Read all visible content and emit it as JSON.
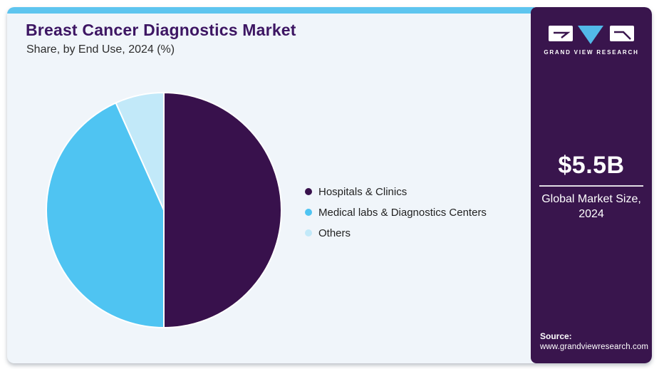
{
  "header": {
    "title": "Breast Cancer Diagnostics Market",
    "subtitle": "Share, by End Use, 2024 (%)"
  },
  "chart_data": {
    "type": "pie",
    "title": "Breast Cancer Diagnostics Market Share, by End Use, 2024 (%)",
    "labels": [
      "Hospitals & Clinics",
      "Medical labs & Diagnostics Centers",
      "Others"
    ],
    "values": [
      50.0,
      43.3,
      6.7
    ],
    "colors": [
      "#38114c",
      "#4fc4f2",
      "#c2e9f9"
    ],
    "start_angle_deg": 0,
    "direction": "clockwise",
    "legend_position": "right",
    "data_labels_shown": false
  },
  "sidebar": {
    "logo_text": "GRAND VIEW RESEARCH",
    "market_size_value": "$5.5B",
    "market_size_label_line1": "Global Market Size,",
    "market_size_label_line2": "2024",
    "source_label": "Source:",
    "source_url": "www.grandviewresearch.com"
  },
  "colors": {
    "card_background": "#f0f5fa",
    "accent_strip": "#5ec5ef",
    "sidebar_background": "#39154d",
    "title_text": "#3d1663",
    "logo_triangle": "#52b9e8"
  }
}
